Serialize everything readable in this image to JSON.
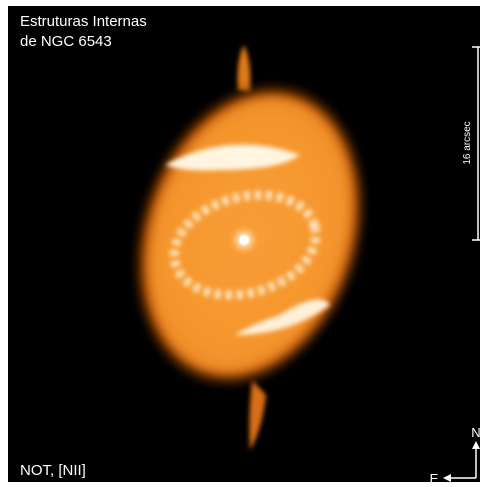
{
  "title": {
    "line1": "Estruturas Internas",
    "line2": "de NGC 6543"
  },
  "scale_bar": {
    "label": "16 arcsec"
  },
  "caption": "NOT, [NII]",
  "compass": {
    "north": "N",
    "east": "E"
  }
}
